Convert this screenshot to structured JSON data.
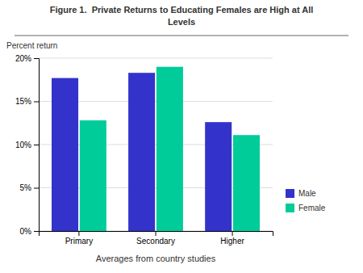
{
  "chart_data": {
    "type": "bar",
    "title": "Figure 1.  Private Returns to Educating Females are High at All\nLevels",
    "categories": [
      "Primary",
      "Secondary",
      "Higher"
    ],
    "series": [
      {
        "name": "Male",
        "color": "#3333cc",
        "values": [
          0.177,
          0.183,
          0.126
        ]
      },
      {
        "name": "Female",
        "color": "#00cc99",
        "values": [
          0.128,
          0.19,
          0.111
        ]
      }
    ],
    "y_label": "Percent return",
    "x_label": "Averages from country studies",
    "ylim": [
      0,
      0.2
    ],
    "yticks": [
      {
        "value": 0.0,
        "label": "0%"
      },
      {
        "value": 0.05,
        "label": "5%"
      },
      {
        "value": 0.1,
        "label": "10%"
      },
      {
        "value": 0.15,
        "label": "15%"
      },
      {
        "value": 0.2,
        "label": "20%"
      }
    ],
    "grid": true,
    "legend": "right"
  }
}
